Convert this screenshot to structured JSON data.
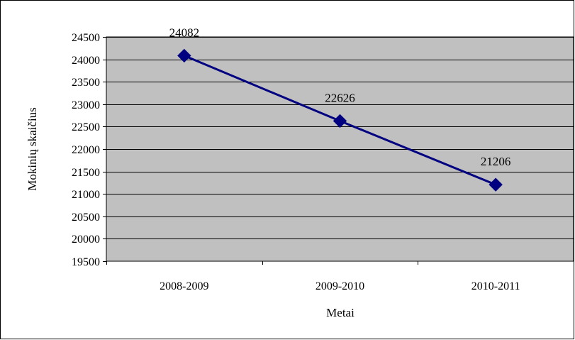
{
  "chart_data": {
    "type": "line",
    "categories": [
      "2008-2009",
      "2009-2010",
      "2010-2011"
    ],
    "series": [
      {
        "values": [
          24082,
          22626,
          21206
        ]
      }
    ],
    "data_labels": [
      "24082",
      "22626",
      "21206"
    ],
    "xlabel": "Metai",
    "ylabel": "Mokinių skaičius",
    "ylim": [
      19500,
      24500
    ],
    "yticks": [
      19500,
      20000,
      20500,
      21000,
      21500,
      22000,
      22500,
      23000,
      23500,
      24000,
      24500
    ],
    "grid": true,
    "legend": "none",
    "marker": "diamond",
    "colors": {
      "plot_background": "#c0c0c0",
      "line": "#000080",
      "marker": "#000080",
      "gridline": "#000000",
      "frame": "#000000"
    }
  }
}
